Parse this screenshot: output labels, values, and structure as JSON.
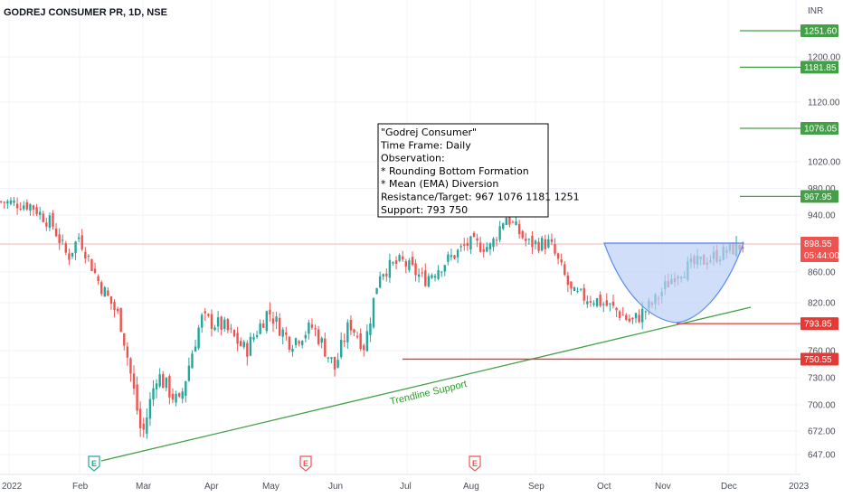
{
  "title": "GODREJ CONSUMER PR, 1D, NSE",
  "currency": "INR",
  "colors": {
    "up": "#26a69a",
    "down": "#ef5350",
    "green_line": "#43a047",
    "red_line": "#e53935",
    "price_tag": "#ef5350",
    "bowl_fill": "#bcd0f7",
    "bowl_stroke": "#5b8def",
    "event_flag": "#ef5350",
    "earnings_flag": "#26a69a"
  },
  "chart_data": {
    "type": "candlestick",
    "ylim": [
      640,
      1260
    ],
    "y_ticks": [
      "1200.00",
      "1120.00",
      "1020.00",
      "980.00",
      "940.00",
      "860.00",
      "820.00",
      "760.00",
      "730.00",
      "700.00",
      "672.00",
      "647.00"
    ],
    "x_ticks": [
      "2022",
      "Feb",
      "Mar",
      "Apr",
      "May",
      "Jun",
      "Jul",
      "Aug",
      "Sep",
      "Oct",
      "Nov",
      "Dec",
      "2023"
    ],
    "last_price": "898.55",
    "countdown": "05:44:00",
    "level_tags": [
      {
        "label": "1251.60",
        "value": 1251.6,
        "color": "green"
      },
      {
        "label": "1181.85",
        "value": 1181.85,
        "color": "green"
      },
      {
        "label": "1076.05",
        "value": 1076.05,
        "color": "green"
      },
      {
        "label": "967.95",
        "value": 967.95,
        "color": "green"
      },
      {
        "label": "793.85",
        "value": 793.85,
        "color": "red"
      },
      {
        "label": "750.55",
        "value": 750.55,
        "color": "red"
      }
    ],
    "trendline_label": "Trendline Support",
    "annotation": [
      "\"Godrej Consumer\"",
      "Time Frame: Daily",
      "Observation:",
      "* Rounding Bottom Formation",
      "* Mean (EMA) Diversion",
      "Resistance/Target: 967 1076 1181 1251",
      "Support: 793 750"
    ],
    "events": [
      {
        "label": "E",
        "kind": "earnings"
      },
      {
        "label": "E",
        "kind": "event"
      },
      {
        "label": "E",
        "kind": "event"
      }
    ],
    "close_path": [
      {
        "t": 0,
        "p": 960
      },
      {
        "t": 0.04,
        "p": 955
      },
      {
        "t": 0.07,
        "p": 925
      },
      {
        "t": 0.09,
        "p": 880
      },
      {
        "t": 0.105,
        "p": 910
      },
      {
        "t": 0.13,
        "p": 850
      },
      {
        "t": 0.16,
        "p": 800
      },
      {
        "t": 0.19,
        "p": 665
      },
      {
        "t": 0.21,
        "p": 735
      },
      {
        "t": 0.24,
        "p": 700
      },
      {
        "t": 0.27,
        "p": 800
      },
      {
        "t": 0.3,
        "p": 790
      },
      {
        "t": 0.33,
        "p": 760
      },
      {
        "t": 0.36,
        "p": 810
      },
      {
        "t": 0.39,
        "p": 770
      },
      {
        "t": 0.42,
        "p": 790
      },
      {
        "t": 0.45,
        "p": 740
      },
      {
        "t": 0.47,
        "p": 795
      },
      {
        "t": 0.49,
        "p": 765
      },
      {
        "t": 0.51,
        "p": 860
      },
      {
        "t": 0.54,
        "p": 875
      },
      {
        "t": 0.57,
        "p": 850
      },
      {
        "t": 0.6,
        "p": 875
      },
      {
        "t": 0.63,
        "p": 900
      },
      {
        "t": 0.66,
        "p": 895
      },
      {
        "t": 0.68,
        "p": 940
      },
      {
        "t": 0.71,
        "p": 900
      },
      {
        "t": 0.74,
        "p": 900
      },
      {
        "t": 0.77,
        "p": 830
      },
      {
        "t": 0.8,
        "p": 825
      },
      {
        "t": 0.83,
        "p": 810
      },
      {
        "t": 0.85,
        "p": 795
      },
      {
        "t": 0.88,
        "p": 820
      },
      {
        "t": 0.91,
        "p": 860
      },
      {
        "t": 1.0,
        "p": 898
      }
    ]
  }
}
